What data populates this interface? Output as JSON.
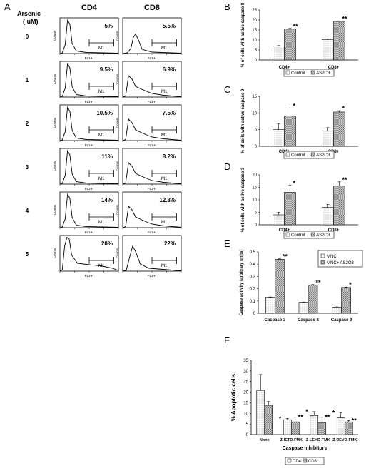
{
  "panel_letters": {
    "a": "A",
    "b": "B",
    "c": "C",
    "d": "D",
    "e": "E",
    "f": "F"
  },
  "flow": {
    "arsenic_label_1": "Arsenic",
    "arsenic_label_2": "( uM)",
    "col_cd4": "CD4",
    "col_cd8": "CD8",
    "doses": [
      "0",
      "1",
      "2",
      "3",
      "4",
      "5"
    ],
    "cd4_pct": [
      "5%",
      "9.5%",
      "10.5%",
      "11%",
      "14%",
      "20%"
    ],
    "cd8_pct": [
      "5.5%",
      "6.9%",
      "7.5%",
      "8.2%",
      "12.8%",
      "22%"
    ],
    "gate_label": "M1",
    "y_axis_label": "Counts",
    "x_axis_label": "FL1-H"
  },
  "chart_data": [
    {
      "id": "B",
      "type": "bar",
      "categories": [
        "CD4+",
        "CD8+"
      ],
      "ylabel": "% of cells with active caspase 8",
      "ylim": [
        0,
        25
      ],
      "yticks": [
        "0",
        "5",
        "10",
        "15",
        "20",
        "25"
      ],
      "series": [
        {
          "name": "Control",
          "values": [
            7,
            10.2
          ],
          "errors": [
            0.2,
            0.4
          ]
        },
        {
          "name": "AS2O3",
          "values": [
            15.6,
            19.3
          ],
          "errors": [
            0.2,
            0.2
          ]
        }
      ],
      "significance": [
        "**",
        "**"
      ],
      "legend": [
        "Control",
        "AS2O3"
      ]
    },
    {
      "id": "C",
      "type": "bar",
      "categories": [
        "CD4+",
        "CD8+"
      ],
      "ylabel": "% of cells with active caspase 9",
      "ylim": [
        0,
        15
      ],
      "yticks": [
        "0",
        "5",
        "10",
        "15"
      ],
      "series": [
        {
          "name": "Control",
          "values": [
            5,
            4.6
          ],
          "errors": [
            1.7,
            1.0
          ]
        },
        {
          "name": "AS2O3",
          "values": [
            9.1,
            10.3
          ],
          "errors": [
            2.4,
            0.4
          ]
        }
      ],
      "significance": [
        "*",
        "*"
      ],
      "legend": [
        "Control",
        "AS2O3"
      ]
    },
    {
      "id": "D",
      "type": "bar",
      "categories": [
        "CD4+",
        "CD8+"
      ],
      "ylabel": "% of cells with active caspase 3",
      "ylim": [
        0,
        20
      ],
      "yticks": [
        "0",
        "5",
        "10",
        "15",
        "20"
      ],
      "series": [
        {
          "name": "Control",
          "values": [
            4,
            7
          ],
          "errors": [
            1.0,
            1.1
          ]
        },
        {
          "name": "AS2O3",
          "values": [
            13,
            15.5
          ],
          "errors": [
            2.8,
            1.7
          ]
        }
      ],
      "significance": [
        "*",
        "**"
      ],
      "legend": [
        "Control",
        "AS2O3"
      ]
    },
    {
      "id": "E",
      "type": "bar",
      "categories": [
        "Caspase 3",
        "Caspase 8",
        "Caspase 9"
      ],
      "ylabel": "Caspase activity (arbitrary units)",
      "ylim": [
        0,
        0.5
      ],
      "yticks": [
        "0",
        "0.1",
        "0.2",
        "0.3",
        "0.4",
        "0.5"
      ],
      "series": [
        {
          "name": "MNC",
          "values": [
            0.13,
            0.09,
            0.05
          ],
          "errors": [
            0.003,
            0.002,
            0.002
          ]
        },
        {
          "name": "MNC+ AS2O3",
          "values": [
            0.44,
            0.23,
            0.21
          ],
          "errors": [
            0.004,
            0.004,
            0.004
          ]
        }
      ],
      "significance": [
        "**",
        "**",
        "*"
      ],
      "legend": [
        "MNC",
        "MNC+ AS2O3"
      ]
    },
    {
      "id": "F",
      "type": "bar",
      "categories": [
        "None",
        "Z-IETD-FMK",
        "Z-LEHD-FMK",
        "Z-DEVD-FMK"
      ],
      "ylabel": "% Apoptotic cells",
      "xlabel": "Caspase inhibitors",
      "ylim": [
        0,
        35
      ],
      "yticks": [
        "0",
        "5",
        "10",
        "15",
        "20",
        "25",
        "30",
        "35"
      ],
      "series": [
        {
          "name": "CD4",
          "values": [
            20.8,
            7,
            9,
            8
          ],
          "errors": [
            7.5,
            0.6,
            1.8,
            2.2
          ]
        },
        {
          "name": "CD8",
          "values": [
            13.8,
            6,
            5.5,
            6
          ],
          "errors": [
            1.8,
            2.2,
            2.8,
            0.6
          ]
        }
      ],
      "significance_cd4": [
        "",
        "*",
        "*",
        "*"
      ],
      "significance_cd8": [
        "",
        "**",
        "**",
        "**"
      ],
      "legend": [
        "CD4",
        "CD8"
      ]
    }
  ]
}
